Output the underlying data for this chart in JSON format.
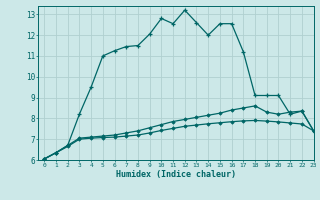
{
  "background_color": "#cce8e8",
  "grid_color": "#b0d0d0",
  "line_color": "#006666",
  "xlabel": "Humidex (Indice chaleur)",
  "xlim": [
    -0.5,
    23
  ],
  "ylim": [
    6,
    13.4
  ],
  "yticks": [
    6,
    7,
    8,
    9,
    10,
    11,
    12,
    13
  ],
  "xticks": [
    0,
    1,
    2,
    3,
    4,
    5,
    6,
    7,
    8,
    9,
    10,
    11,
    12,
    13,
    14,
    15,
    16,
    17,
    18,
    19,
    20,
    21,
    22,
    23
  ],
  "curve1_x": [
    0,
    1,
    2,
    3,
    4,
    5,
    6,
    7,
    8,
    9,
    10,
    11,
    12,
    13,
    14,
    15,
    16,
    17,
    18,
    19,
    20,
    21,
    22,
    23
  ],
  "curve1_y": [
    6.05,
    6.35,
    6.7,
    8.2,
    9.5,
    11.0,
    11.25,
    11.45,
    11.5,
    12.05,
    12.8,
    12.55,
    13.2,
    12.6,
    12.0,
    12.55,
    12.55,
    11.2,
    9.1,
    9.1,
    9.1,
    8.2,
    8.35,
    7.4
  ],
  "curve2_x": [
    0,
    1,
    2,
    3,
    4,
    5,
    6,
    7,
    8,
    9,
    10,
    11,
    12,
    13,
    14,
    15,
    16,
    17,
    18,
    19,
    20,
    21,
    22,
    23
  ],
  "curve2_y": [
    6.05,
    6.35,
    6.7,
    7.05,
    7.1,
    7.15,
    7.2,
    7.3,
    7.4,
    7.55,
    7.7,
    7.85,
    7.95,
    8.05,
    8.15,
    8.25,
    8.4,
    8.5,
    8.6,
    8.3,
    8.2,
    8.3,
    8.35,
    7.4
  ],
  "curve3_x": [
    0,
    1,
    2,
    3,
    4,
    5,
    6,
    7,
    8,
    9,
    10,
    11,
    12,
    13,
    14,
    15,
    16,
    17,
    18,
    19,
    20,
    21,
    22,
    23
  ],
  "curve3_y": [
    6.05,
    6.35,
    6.65,
    7.0,
    7.05,
    7.08,
    7.1,
    7.15,
    7.2,
    7.3,
    7.42,
    7.52,
    7.62,
    7.68,
    7.74,
    7.79,
    7.84,
    7.88,
    7.9,
    7.87,
    7.83,
    7.78,
    7.73,
    7.4
  ]
}
